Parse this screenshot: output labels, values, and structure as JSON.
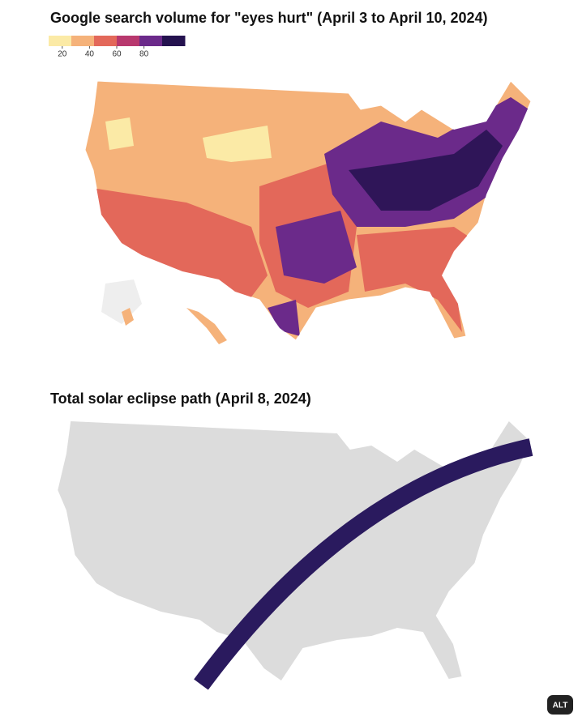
{
  "heatmap": {
    "title": "Google search volume for \"eyes hurt\" (April 3 to April 10, 2024)",
    "legend": {
      "range": [
        10,
        110
      ],
      "ticks": [
        20,
        40,
        60,
        80
      ],
      "colors": [
        "#fbeaa6",
        "#f5b27a",
        "#e3685a",
        "#b8386e",
        "#6b2a8a",
        "#24124f"
      ]
    }
  },
  "eclipse": {
    "title": "Total solar eclipse path (April 8, 2024)"
  },
  "alt_button": "ALT"
}
